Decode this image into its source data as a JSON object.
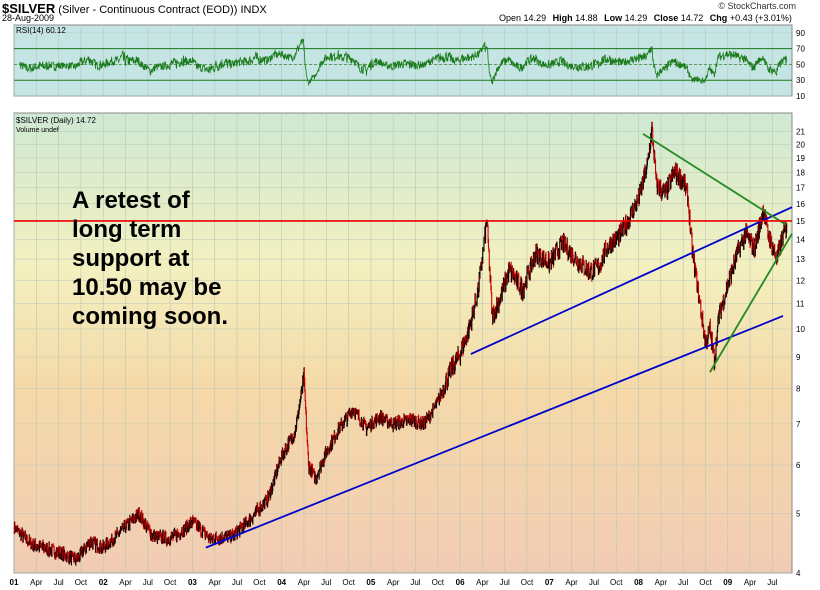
{
  "header": {
    "symbol": "$SILVER",
    "name": "(Silver - Continuous Contract (EOD))",
    "exchange": "INDX",
    "date": "28-Aug-2009",
    "open_label": "Open",
    "open": "14.29",
    "high_label": "High",
    "high": "14.88",
    "low_label": "Low",
    "low": "14.29",
    "close_label": "Close",
    "close": "14.72",
    "chg_label": "Chg",
    "chg": "+0.43 (+3.01%)",
    "brand": "© StockCharts.com"
  },
  "callout": [
    "A retest of",
    "long term",
    "support at",
    "10.50 may be",
    "coming soon."
  ],
  "colors": {
    "price": "#000000",
    "down_tick": "#cc0000",
    "trend_blue": "#0000cc",
    "trend_green": "#228b22",
    "support_red": "#ee0000",
    "rsi_line": "#1a7a1a",
    "rsi_bg": "#c5e4e4",
    "grid": "#b8c8b8"
  },
  "chart_data": [
    {
      "type": "line",
      "title": "RSI(14) 60.12",
      "ylim": [
        10,
        100
      ],
      "yticks": [
        "90",
        "70",
        "50",
        "30",
        "10"
      ],
      "reference_lines": [
        70,
        50,
        30
      ],
      "last_value": 60.12
    },
    {
      "type": "line",
      "title": "$SILVER (Daily) 14.72",
      "subtitle": "Volume undef",
      "scale": "log",
      "ylim": [
        4,
        22.5
      ],
      "yticks": [
        4,
        5,
        6,
        7,
        8,
        9,
        10,
        11,
        12,
        13,
        14,
        15,
        16,
        17,
        18,
        19,
        20,
        21
      ],
      "xlim": [
        2001.0,
        2009.72
      ],
      "xticks": [
        {
          "x": 2001.0,
          "label": "01"
        },
        {
          "x": 2001.25,
          "label": "Apr"
        },
        {
          "x": 2001.5,
          "label": "Jul"
        },
        {
          "x": 2001.75,
          "label": "Oct"
        },
        {
          "x": 2002.0,
          "label": "02"
        },
        {
          "x": 2002.25,
          "label": "Apr"
        },
        {
          "x": 2002.5,
          "label": "Jul"
        },
        {
          "x": 2002.75,
          "label": "Oct"
        },
        {
          "x": 2003.0,
          "label": "03"
        },
        {
          "x": 2003.25,
          "label": "Apr"
        },
        {
          "x": 2003.5,
          "label": "Jul"
        },
        {
          "x": 2003.75,
          "label": "Oct"
        },
        {
          "x": 2004.0,
          "label": "04"
        },
        {
          "x": 2004.25,
          "label": "Apr"
        },
        {
          "x": 2004.5,
          "label": "Jul"
        },
        {
          "x": 2004.75,
          "label": "Oct"
        },
        {
          "x": 2005.0,
          "label": "05"
        },
        {
          "x": 2005.25,
          "label": "Apr"
        },
        {
          "x": 2005.5,
          "label": "Jul"
        },
        {
          "x": 2005.75,
          "label": "Oct"
        },
        {
          "x": 2006.0,
          "label": "06"
        },
        {
          "x": 2006.25,
          "label": "Apr"
        },
        {
          "x": 2006.5,
          "label": "Jul"
        },
        {
          "x": 2006.75,
          "label": "Oct"
        },
        {
          "x": 2007.0,
          "label": "07"
        },
        {
          "x": 2007.25,
          "label": "Apr"
        },
        {
          "x": 2007.5,
          "label": "Jul"
        },
        {
          "x": 2007.75,
          "label": "Oct"
        },
        {
          "x": 2008.0,
          "label": "08"
        },
        {
          "x": 2008.25,
          "label": "Apr"
        },
        {
          "x": 2008.5,
          "label": "Jul"
        },
        {
          "x": 2008.75,
          "label": "Oct"
        },
        {
          "x": 2009.0,
          "label": "09"
        },
        {
          "x": 2009.25,
          "label": "Apr"
        },
        {
          "x": 2009.5,
          "label": "Jul"
        }
      ],
      "grid": true,
      "series": [
        {
          "x": [
            2001.0,
            2001.2,
            2001.45,
            2001.7,
            2001.85,
            2002.0,
            2002.15,
            2002.4,
            2002.55,
            2002.75,
            2002.9,
            2003.0,
            2003.2,
            2003.45,
            2003.65,
            2003.85,
            2004.0,
            2004.15,
            2004.25,
            2004.3,
            2004.38,
            2004.5,
            2004.65,
            2004.8,
            2004.95,
            2005.1,
            2005.25,
            2005.45,
            2005.6,
            2005.75,
            2005.9,
            2006.0,
            2006.1,
            2006.2,
            2006.3,
            2006.36,
            2006.45,
            2006.55,
            2006.7,
            2006.85,
            2007.0,
            2007.15,
            2007.3,
            2007.45,
            2007.55,
            2007.65,
            2007.8,
            2007.9,
            2008.0,
            2008.1,
            2008.15,
            2008.2,
            2008.3,
            2008.4,
            2008.5,
            2008.55,
            2008.6,
            2008.68,
            2008.75,
            2008.8,
            2008.85,
            2008.9,
            2009.0,
            2009.1,
            2009.2,
            2009.3,
            2009.4,
            2009.45,
            2009.55,
            2009.62,
            2009.66
          ],
          "values": [
            4.75,
            4.45,
            4.35,
            4.2,
            4.5,
            4.4,
            4.6,
            5.0,
            4.6,
            4.55,
            4.7,
            4.85,
            4.55,
            4.6,
            4.9,
            5.3,
            6.2,
            6.8,
            8.3,
            6.0,
            5.7,
            6.3,
            6.9,
            7.4,
            6.9,
            7.2,
            7.0,
            7.1,
            7.0,
            7.6,
            8.6,
            9.1,
            10.0,
            11.5,
            15.0,
            10.5,
            11.2,
            12.5,
            11.6,
            13.3,
            12.8,
            13.8,
            13.0,
            12.4,
            12.6,
            13.6,
            14.3,
            15.2,
            16.3,
            18.5,
            21.2,
            17.2,
            16.6,
            18.0,
            17.5,
            16.5,
            13.5,
            11.2,
            9.5,
            10.0,
            8.9,
            10.5,
            11.8,
            13.2,
            14.3,
            13.5,
            15.7,
            14.3,
            13.0,
            14.2,
            14.72
          ]
        }
      ],
      "overlays": [
        {
          "kind": "trendline",
          "color": "blue",
          "from": [
            2003.15,
            4.4
          ],
          "to": [
            2009.62,
            10.5
          ]
        },
        {
          "kind": "trendline",
          "color": "blue",
          "from": [
            2006.12,
            9.1
          ],
          "to": [
            2009.72,
            15.8
          ]
        },
        {
          "kind": "trendline",
          "color": "green",
          "from": [
            2008.05,
            20.8
          ],
          "to": [
            2009.65,
            14.8
          ]
        },
        {
          "kind": "trendline",
          "color": "green",
          "from": [
            2008.8,
            8.5
          ],
          "to": [
            2009.72,
            14.3
          ]
        },
        {
          "kind": "horizontal",
          "color": "red",
          "y": 15.0
        }
      ]
    }
  ]
}
